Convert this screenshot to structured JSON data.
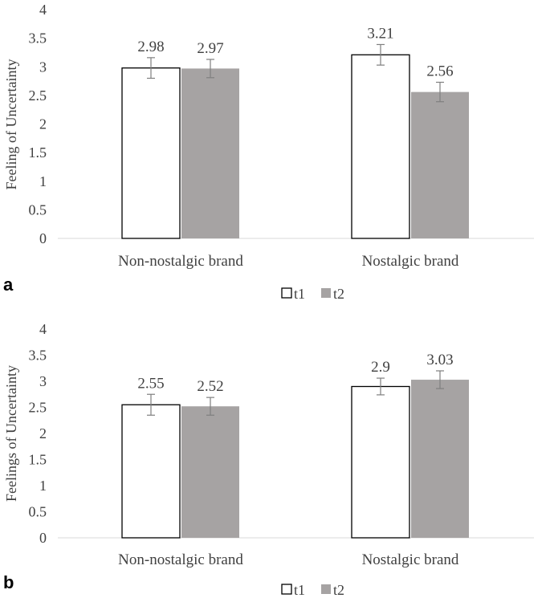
{
  "colors": {
    "t1_fill": "#ffffff",
    "t1_stroke": "#000000",
    "t2_fill": "#a6a3a3",
    "axis": "#d9d9d9",
    "text": "#404040",
    "error": "#7f7f7f"
  },
  "chart_data": [
    {
      "type": "bar",
      "panel_label": "a",
      "ylabel": "Feeling of Uncertainty",
      "ylim": [
        0,
        4
      ],
      "yticks": [
        "0",
        "0.5",
        "1",
        "1.5",
        "2",
        "2.5",
        "3",
        "3.5",
        "4"
      ],
      "categories": [
        "Non-nostalgic brand",
        "Nostalgic brand"
      ],
      "series": [
        {
          "name": "t1",
          "values": [
            2.98,
            3.21
          ],
          "labels": [
            "2.98",
            "3.21"
          ],
          "errors": [
            0.18,
            0.18
          ]
        },
        {
          "name": "t2",
          "values": [
            2.97,
            2.56
          ],
          "labels": [
            "2.97",
            "2.56"
          ],
          "errors": [
            0.16,
            0.17
          ]
        }
      ],
      "legend": [
        "t1",
        "t2"
      ]
    },
    {
      "type": "bar",
      "panel_label": "b",
      "ylabel": "Feelings of Uncertainty",
      "ylim": [
        0,
        4
      ],
      "yticks": [
        "0",
        "0.5",
        "1",
        "1.5",
        "2",
        "2.5",
        "3",
        "3.5",
        "4"
      ],
      "categories": [
        "Non-nostalgic brand",
        "Nostalgic brand"
      ],
      "series": [
        {
          "name": "t1",
          "values": [
            2.55,
            2.9
          ],
          "labels": [
            "2.55",
            "2.9"
          ],
          "errors": [
            0.2,
            0.16
          ]
        },
        {
          "name": "t2",
          "values": [
            2.52,
            3.03
          ],
          "labels": [
            "2.52",
            "3.03"
          ],
          "errors": [
            0.17,
            0.17
          ]
        }
      ],
      "legend": [
        "t1",
        "t2"
      ]
    }
  ]
}
